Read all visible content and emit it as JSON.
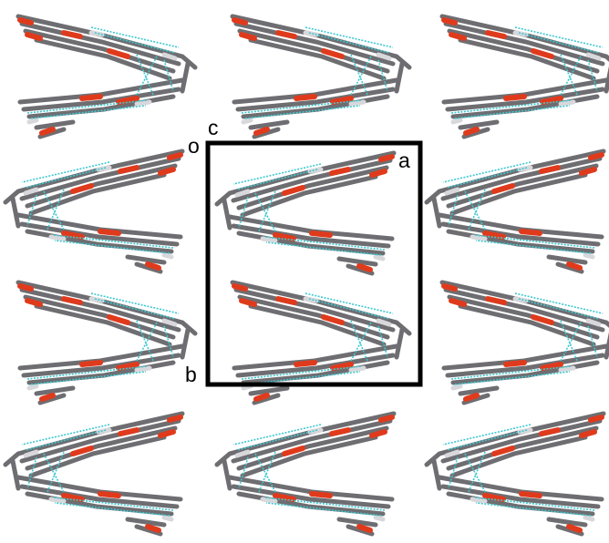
{
  "axes": {
    "origin": "o",
    "c": "c",
    "a": "a",
    "b": "b"
  }
}
